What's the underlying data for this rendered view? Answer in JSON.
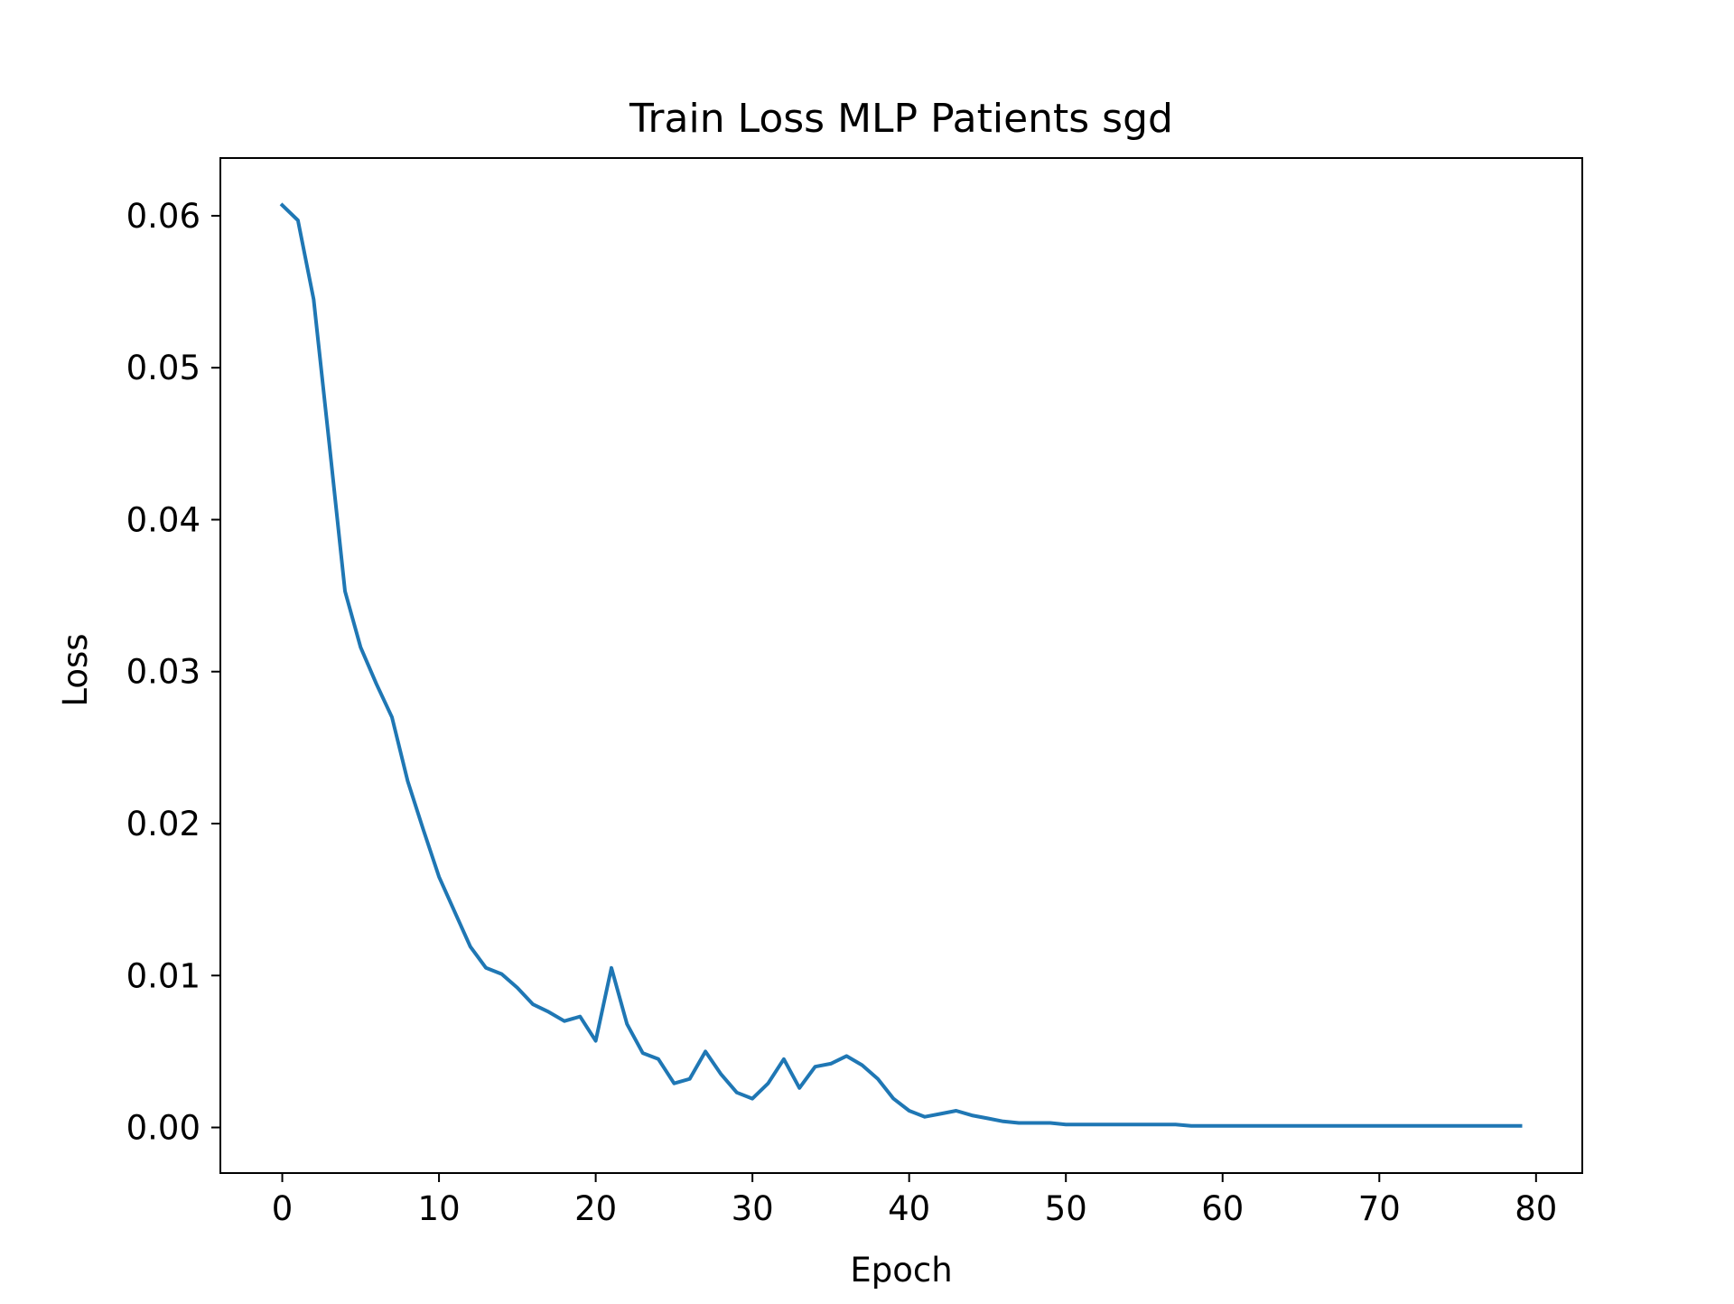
{
  "chart_data": {
    "type": "line",
    "title": "Train Loss MLP Patients sgd",
    "xlabel": "Epoch",
    "ylabel": "Loss",
    "xlim": [
      -3.95,
      82.95
    ],
    "ylim": [
      -0.003,
      0.0638
    ],
    "xticks": [
      0,
      10,
      20,
      30,
      40,
      50,
      60,
      70,
      80
    ],
    "xtick_labels": [
      "0",
      "10",
      "20",
      "30",
      "40",
      "50",
      "60",
      "70",
      "80"
    ],
    "yticks": [
      0.0,
      0.01,
      0.02,
      0.03,
      0.04,
      0.05,
      0.06
    ],
    "ytick_labels": [
      "0.00",
      "0.01",
      "0.02",
      "0.03",
      "0.04",
      "0.05",
      "0.06"
    ],
    "grid": false,
    "legend": "none",
    "series": [
      {
        "color": "#1f77b4",
        "x": [
          0,
          1,
          2,
          3,
          4,
          5,
          6,
          7,
          8,
          9,
          10,
          11,
          12,
          13,
          14,
          15,
          16,
          17,
          18,
          19,
          20,
          21,
          22,
          23,
          24,
          25,
          26,
          27,
          28,
          29,
          30,
          31,
          32,
          33,
          34,
          35,
          36,
          37,
          38,
          39,
          40,
          41,
          42,
          43,
          44,
          45,
          46,
          47,
          48,
          49,
          50,
          51,
          52,
          53,
          54,
          55,
          56,
          57,
          58,
          59,
          60,
          61,
          62,
          63,
          64,
          65,
          66,
          67,
          68,
          69,
          70,
          71,
          72,
          73,
          74,
          75,
          76,
          77,
          78,
          79
        ],
        "values": [
          0.0607,
          0.0597,
          0.0545,
          0.045,
          0.0353,
          0.0316,
          0.0292,
          0.027,
          0.0228,
          0.0196,
          0.0165,
          0.0142,
          0.0119,
          0.0105,
          0.0101,
          0.0092,
          0.0081,
          0.0076,
          0.007,
          0.0073,
          0.0057,
          0.0105,
          0.0068,
          0.0049,
          0.0045,
          0.0029,
          0.0032,
          0.005,
          0.0035,
          0.0023,
          0.0019,
          0.0029,
          0.0045,
          0.0026,
          0.004,
          0.0042,
          0.0047,
          0.0041,
          0.0032,
          0.0019,
          0.0011,
          0.0007,
          0.0009,
          0.0011,
          0.0008,
          0.0006,
          0.0004,
          0.0003,
          0.0003,
          0.0003,
          0.0002,
          0.0002,
          0.0002,
          0.0002,
          0.0002,
          0.0002,
          0.0002,
          0.0002,
          0.0001,
          0.0001,
          0.0001,
          0.0001,
          0.0001,
          0.0001,
          0.0001,
          0.0001,
          0.0001,
          0.0001,
          0.0001,
          0.0001,
          0.0001,
          0.0001,
          0.0001,
          0.0001,
          0.0001,
          0.0001,
          0.0001,
          0.0001,
          0.0001,
          0.0001
        ]
      }
    ]
  }
}
